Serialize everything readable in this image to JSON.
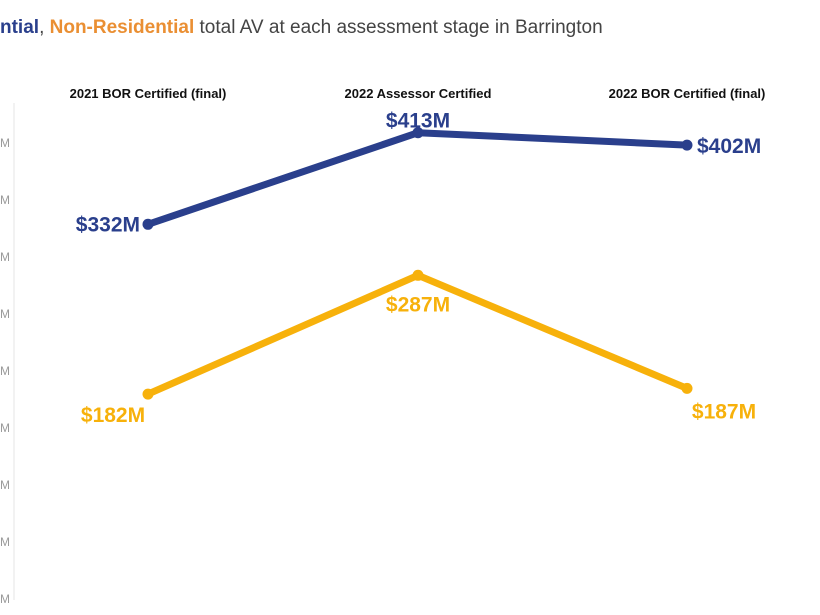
{
  "title": {
    "series1": "ntial",
    "sep": ", ",
    "series2": "Non-Residential",
    "rest": " total AV at each assessment stage in Barrington"
  },
  "colors": {
    "residential": "#2a3f8c",
    "non_residential": "#f7b10b",
    "title_residential": "#2a3f8c",
    "title_non_residential": "#ea8f33"
  },
  "chart_data": {
    "type": "line",
    "categories": [
      "2021 BOR Certified (final)",
      "2022 Assessor Certified",
      "2022 BOR Certified (final)"
    ],
    "series": [
      {
        "key": "residential",
        "values": [
          332,
          413,
          402
        ],
        "labels": [
          "$332M",
          "$413M",
          "$402M"
        ]
      },
      {
        "key": "non_residential",
        "values": [
          182,
          287,
          187
        ],
        "labels": [
          "$182M",
          "$287M",
          "$187M"
        ]
      }
    ],
    "ylim": [
      0,
      430
    ],
    "y_tick_labels": [
      "M",
      "M",
      "M",
      "M",
      "M",
      "M",
      "M",
      "M",
      "M"
    ],
    "grid": false
  }
}
